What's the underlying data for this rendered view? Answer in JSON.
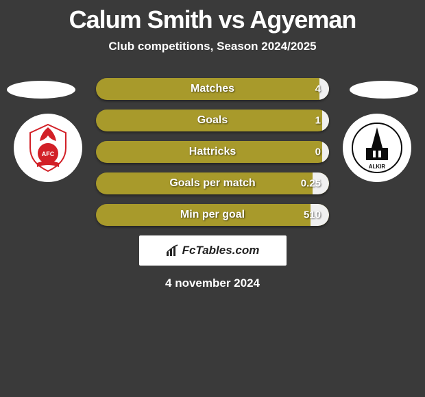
{
  "header": {
    "title": "Calum Smith vs Agyeman",
    "subtitle": "Club competitions, Season 2024/2025"
  },
  "left_club": {
    "badge_bg": "#ffffff",
    "badge_text": "AFC",
    "badge_primary": "#d22027",
    "badge_secondary": "#ffffff"
  },
  "right_club": {
    "badge_bg": "#ffffff",
    "badge_text": "ALKIR",
    "badge_primary": "#0b0b0b",
    "badge_secondary": "#ffffff"
  },
  "stats": {
    "bar_color": "#a89a2b",
    "fill_color": "#f0f0f0",
    "rows": [
      {
        "label": "Matches",
        "right_value": "4",
        "right_fill_pct": 4
      },
      {
        "label": "Goals",
        "right_value": "1",
        "right_fill_pct": 3
      },
      {
        "label": "Hattricks",
        "right_value": "0",
        "right_fill_pct": 3
      },
      {
        "label": "Goals per match",
        "right_value": "0.25",
        "right_fill_pct": 7
      },
      {
        "label": "Min per goal",
        "right_value": "510",
        "right_fill_pct": 8
      }
    ]
  },
  "brand": {
    "text": "FcTables.com"
  },
  "footer": {
    "date": "4 november 2024"
  },
  "styling": {
    "background": "#3a3a3a",
    "title_color": "#ffffff",
    "title_fontsize": 36,
    "subtitle_fontsize": 17,
    "stat_label_fontsize": 16,
    "pill_color": "#ffffff"
  }
}
